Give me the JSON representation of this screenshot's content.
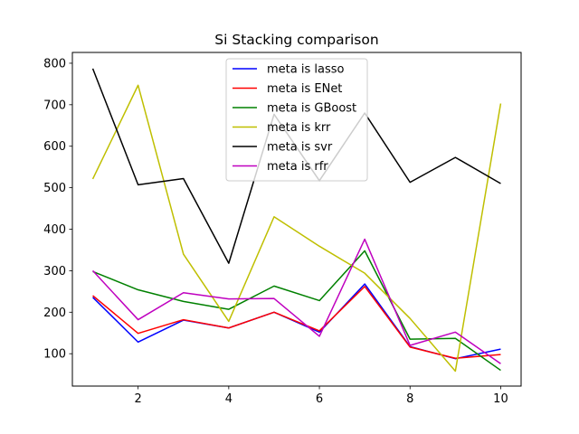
{
  "chart_data": {
    "type": "line",
    "title": "Si Stacking comparison",
    "xlabel": "",
    "ylabel": "",
    "x": [
      1,
      2,
      3,
      4,
      5,
      6,
      7,
      8,
      9,
      10
    ],
    "xlim": [
      0.55,
      10.45
    ],
    "ylim": [
      22,
      826
    ],
    "xticks": [
      2,
      4,
      6,
      8,
      10
    ],
    "yticks": [
      100,
      200,
      300,
      400,
      500,
      600,
      700,
      800
    ],
    "grid": false,
    "legend_position": "top-center",
    "series": [
      {
        "name": "meta is lasso",
        "color": "#0000ff",
        "values": [
          236,
          128,
          181,
          162,
          200,
          152,
          268,
          117,
          88,
          111
        ]
      },
      {
        "name": "meta is ENet",
        "color": "#ff0000",
        "values": [
          240,
          149,
          182,
          162,
          200,
          155,
          262,
          116,
          89,
          98
        ]
      },
      {
        "name": "meta is GBoost",
        "color": "#008000",
        "values": [
          298,
          254,
          226,
          207,
          263,
          228,
          348,
          135,
          137,
          60
        ]
      },
      {
        "name": "meta is krr",
        "color": "#bfbf00",
        "values": [
          521,
          747,
          340,
          178,
          430,
          359,
          294,
          185,
          58,
          703
        ]
      },
      {
        "name": "meta is svr",
        "color": "#000000",
        "values": [
          787,
          507,
          522,
          318,
          677,
          517,
          680,
          513,
          573,
          510
        ]
      },
      {
        "name": "meta is rfr",
        "color": "#bf00bf",
        "values": [
          300,
          182,
          247,
          232,
          233,
          142,
          376,
          120,
          152,
          76
        ]
      }
    ]
  }
}
